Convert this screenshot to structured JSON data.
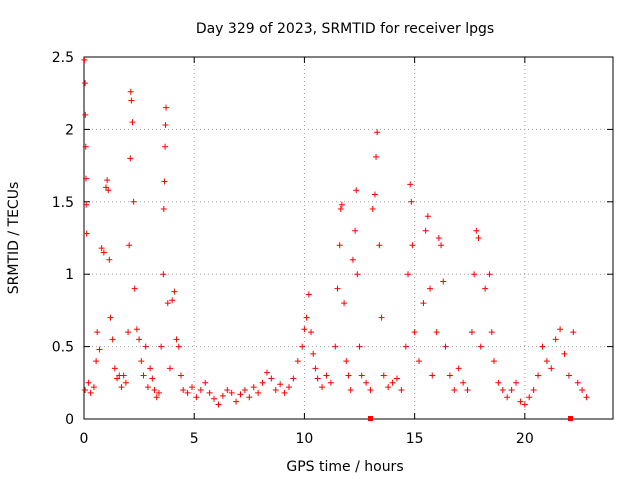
{
  "chart_data": {
    "type": "scatter",
    "title": "Day 329 of 2023, SRMTID for receiver lpgs",
    "xlabel": "GPS time / hours",
    "ylabel": "SRMTID / TECUs",
    "xlim": [
      0,
      24
    ],
    "ylim": [
      0,
      2.5
    ],
    "x_ticks": [
      "0",
      "5",
      "10",
      "15",
      "20"
    ],
    "y_ticks": [
      "0",
      "0.5",
      "1",
      "1.5",
      "2",
      "2.5"
    ],
    "grid": true,
    "marker": "plus",
    "color": "#ff0000",
    "series": [
      {
        "name": "SRMTID",
        "points": [
          [
            0.02,
            2.48
          ],
          [
            0.05,
            2.32
          ],
          [
            0.06,
            2.1
          ],
          [
            0.08,
            1.88
          ],
          [
            0.09,
            1.66
          ],
          [
            0.1,
            1.48
          ],
          [
            0.12,
            1.28
          ],
          [
            0.05,
            0.2
          ],
          [
            0.2,
            0.25
          ],
          [
            0.3,
            0.18
          ],
          [
            0.45,
            0.22
          ],
          [
            0.55,
            0.4
          ],
          [
            0.6,
            0.6
          ],
          [
            0.7,
            0.48
          ],
          [
            0.8,
            1.18
          ],
          [
            0.9,
            1.15
          ],
          [
            1.0,
            1.6
          ],
          [
            1.05,
            1.65
          ],
          [
            1.1,
            1.58
          ],
          [
            1.15,
            1.1
          ],
          [
            1.2,
            0.7
          ],
          [
            1.3,
            0.55
          ],
          [
            1.4,
            0.35
          ],
          [
            1.5,
            0.28
          ],
          [
            1.6,
            0.3
          ],
          [
            1.7,
            0.22
          ],
          [
            1.8,
            0.3
          ],
          [
            1.9,
            0.25
          ],
          [
            2.0,
            0.6
          ],
          [
            2.05,
            1.2
          ],
          [
            2.1,
            1.8
          ],
          [
            2.12,
            2.26
          ],
          [
            2.15,
            2.2
          ],
          [
            2.2,
            2.05
          ],
          [
            2.25,
            1.5
          ],
          [
            2.3,
            0.9
          ],
          [
            2.4,
            0.62
          ],
          [
            2.5,
            0.55
          ],
          [
            2.6,
            0.4
          ],
          [
            2.7,
            0.3
          ],
          [
            2.8,
            0.5
          ],
          [
            2.9,
            0.22
          ],
          [
            3.0,
            0.35
          ],
          [
            3.1,
            0.28
          ],
          [
            3.2,
            0.2
          ],
          [
            3.3,
            0.15
          ],
          [
            3.4,
            0.18
          ],
          [
            3.5,
            0.5
          ],
          [
            3.6,
            1.0
          ],
          [
            3.62,
            1.45
          ],
          [
            3.65,
            1.64
          ],
          [
            3.68,
            1.88
          ],
          [
            3.7,
            2.03
          ],
          [
            3.72,
            2.15
          ],
          [
            3.8,
            0.8
          ],
          [
            3.9,
            0.35
          ],
          [
            4.0,
            0.82
          ],
          [
            4.1,
            0.88
          ],
          [
            4.2,
            0.55
          ],
          [
            4.3,
            0.5
          ],
          [
            4.4,
            0.3
          ],
          [
            4.5,
            0.2
          ],
          [
            4.7,
            0.18
          ],
          [
            4.9,
            0.22
          ],
          [
            5.1,
            0.15
          ],
          [
            5.3,
            0.2
          ],
          [
            5.5,
            0.25
          ],
          [
            5.7,
            0.18
          ],
          [
            5.9,
            0.14
          ],
          [
            6.1,
            0.1
          ],
          [
            6.3,
            0.16
          ],
          [
            6.5,
            0.2
          ],
          [
            6.7,
            0.18
          ],
          [
            6.9,
            0.12
          ],
          [
            7.1,
            0.17
          ],
          [
            7.3,
            0.2
          ],
          [
            7.5,
            0.15
          ],
          [
            7.7,
            0.22
          ],
          [
            7.9,
            0.18
          ],
          [
            8.1,
            0.25
          ],
          [
            8.3,
            0.32
          ],
          [
            8.5,
            0.28
          ],
          [
            8.7,
            0.2
          ],
          [
            8.9,
            0.24
          ],
          [
            9.1,
            0.18
          ],
          [
            9.3,
            0.22
          ],
          [
            9.5,
            0.28
          ],
          [
            9.7,
            0.4
          ],
          [
            9.9,
            0.5
          ],
          [
            10.0,
            0.62
          ],
          [
            10.1,
            0.7
          ],
          [
            10.2,
            0.86
          ],
          [
            10.3,
            0.6
          ],
          [
            10.4,
            0.45
          ],
          [
            10.5,
            0.35
          ],
          [
            10.6,
            0.28
          ],
          [
            10.8,
            0.22
          ],
          [
            11.0,
            0.3
          ],
          [
            11.2,
            0.25
          ],
          [
            11.4,
            0.5
          ],
          [
            11.5,
            0.9
          ],
          [
            11.6,
            1.2
          ],
          [
            11.65,
            1.45
          ],
          [
            11.7,
            1.48
          ],
          [
            11.8,
            0.8
          ],
          [
            11.9,
            0.4
          ],
          [
            12.0,
            0.3
          ],
          [
            12.1,
            0.2
          ],
          [
            12.2,
            1.1
          ],
          [
            12.3,
            1.3
          ],
          [
            12.35,
            1.58
          ],
          [
            12.4,
            1.0
          ],
          [
            12.5,
            0.5
          ],
          [
            12.6,
            0.3
          ],
          [
            12.8,
            0.25
          ],
          [
            13.0,
            0.2
          ],
          [
            13.1,
            1.45
          ],
          [
            13.2,
            1.55
          ],
          [
            13.25,
            1.81
          ],
          [
            13.3,
            1.98
          ],
          [
            13.4,
            1.2
          ],
          [
            13.5,
            0.7
          ],
          [
            13.6,
            0.3
          ],
          [
            13.8,
            0.22
          ],
          [
            14.0,
            0.25
          ],
          [
            14.2,
            0.28
          ],
          [
            14.4,
            0.2
          ],
          [
            14.6,
            0.5
          ],
          [
            14.7,
            1.0
          ],
          [
            14.8,
            1.62
          ],
          [
            14.85,
            1.5
          ],
          [
            14.9,
            1.2
          ],
          [
            15.0,
            0.6
          ],
          [
            15.2,
            0.4
          ],
          [
            15.4,
            0.8
          ],
          [
            15.5,
            1.3
          ],
          [
            15.6,
            1.4
          ],
          [
            15.7,
            0.9
          ],
          [
            15.8,
            0.3
          ],
          [
            16.0,
            0.6
          ],
          [
            16.1,
            1.25
          ],
          [
            16.2,
            1.2
          ],
          [
            16.3,
            0.95
          ],
          [
            16.4,
            0.5
          ],
          [
            16.6,
            0.3
          ],
          [
            16.8,
            0.2
          ],
          [
            17.0,
            0.35
          ],
          [
            17.2,
            0.25
          ],
          [
            17.4,
            0.2
          ],
          [
            17.6,
            0.6
          ],
          [
            17.7,
            1.0
          ],
          [
            17.8,
            1.3
          ],
          [
            17.9,
            1.25
          ],
          [
            18.0,
            0.5
          ],
          [
            18.2,
            0.9
          ],
          [
            18.4,
            1.0
          ],
          [
            18.5,
            0.6
          ],
          [
            18.6,
            0.4
          ],
          [
            18.8,
            0.25
          ],
          [
            19.0,
            0.2
          ],
          [
            19.2,
            0.15
          ],
          [
            19.4,
            0.2
          ],
          [
            19.6,
            0.25
          ],
          [
            19.8,
            0.12
          ],
          [
            20.0,
            0.1
          ],
          [
            20.2,
            0.15
          ],
          [
            20.4,
            0.2
          ],
          [
            20.6,
            0.3
          ],
          [
            20.8,
            0.5
          ],
          [
            21.0,
            0.4
          ],
          [
            21.2,
            0.35
          ],
          [
            21.4,
            0.55
          ],
          [
            21.6,
            0.62
          ],
          [
            21.8,
            0.45
          ],
          [
            22.0,
            0.3
          ],
          [
            22.2,
            0.6
          ],
          [
            22.4,
            0.25
          ],
          [
            22.6,
            0.2
          ],
          [
            22.8,
            0.15
          ]
        ]
      }
    ]
  }
}
